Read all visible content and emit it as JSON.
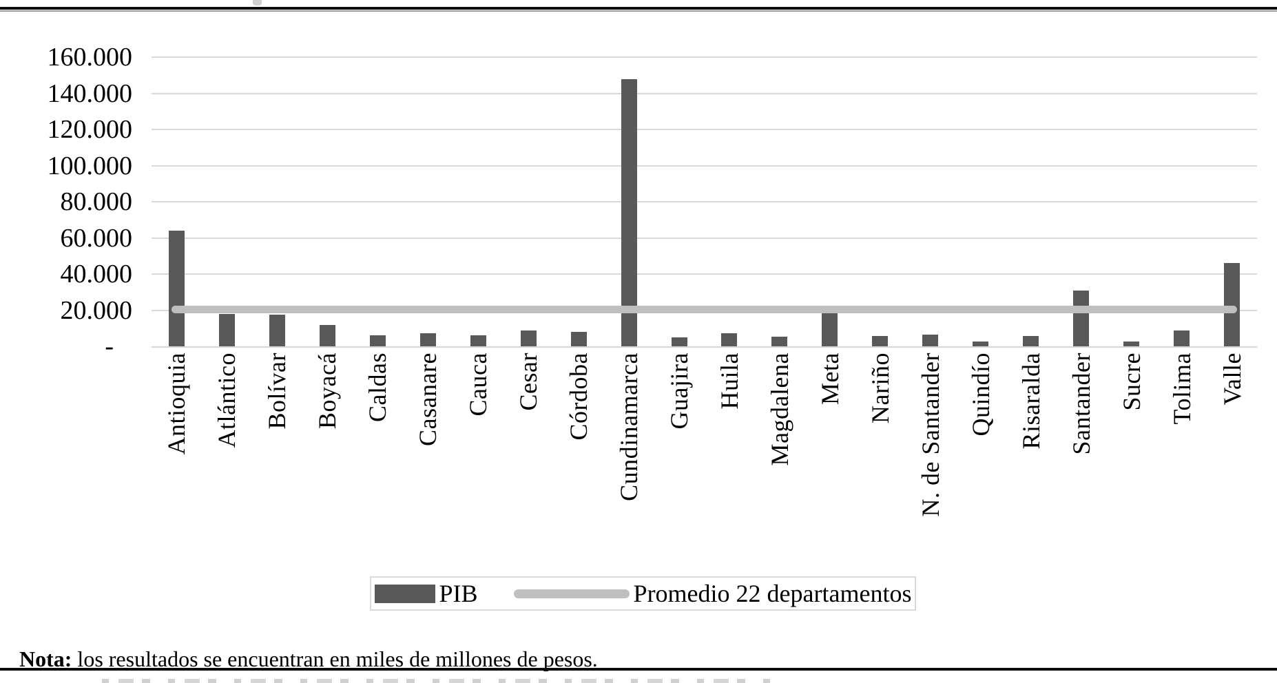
{
  "chart_data": {
    "type": "bar",
    "title": "",
    "xlabel": "",
    "ylabel": "",
    "categories": [
      "Antioquia",
      "Atlántico",
      "Bolívar",
      "Boyacá",
      "Caldas",
      "Casanare",
      "Cauca",
      "Cesar",
      "Córdoba",
      "Cundinamarca",
      "Guajira",
      "Huila",
      "Magdalena",
      "Meta",
      "Nariño",
      "N. de Santander",
      "Quindío",
      "Risaralda",
      "Santander",
      "Sucre",
      "Tolima",
      "Valle"
    ],
    "series": [
      {
        "name": "PIB",
        "type": "bar",
        "values": [
          64000,
          18000,
          17400,
          12000,
          6000,
          7400,
          6100,
          8700,
          8000,
          148000,
          4800,
          7100,
          5300,
          18500,
          5900,
          6500,
          2800,
          5900,
          31000,
          2800,
          8900,
          46000
        ]
      },
      {
        "name": "Promedio 22 departamentos",
        "type": "line",
        "value": 20400
      }
    ],
    "ylim": [
      0,
      160000
    ],
    "ytick_step": 20000,
    "ytick_labels_top_to_bottom": [
      "160.000",
      "140.000",
      "120.000",
      "100.000",
      "80.000",
      "60.000",
      "40.000",
      "20.000",
      "-"
    ],
    "grid": true,
    "legend_position": "bottom-center"
  },
  "note": {
    "prefix": "Nota:",
    "text": " los resultados se encuentran en miles de millones de pesos."
  },
  "colors": {
    "bar": "#595959",
    "promedio_line": "#bfbfbf",
    "gridline": "#d9d9d9",
    "axis": "#d6d6d6",
    "text": "#000000",
    "legend_border": "#d9d9d9",
    "rule": "#0d0d0d"
  }
}
